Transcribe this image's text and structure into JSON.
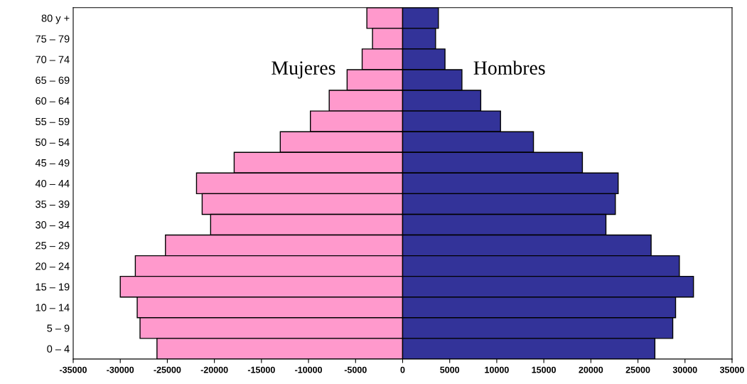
{
  "chart_data": {
    "type": "bar",
    "orientation": "horizontal",
    "stacked": true,
    "categories": [
      "80 y +",
      "75 – 79",
      "70 – 74",
      "65 – 69",
      "60 – 64",
      "55 – 59",
      "50 – 54",
      "45 – 49",
      "40 – 44",
      "35 – 39",
      "30 – 34",
      "25 – 29",
      "20 – 24",
      "15 – 19",
      "10 – 14",
      "5 – 9",
      "0 – 4"
    ],
    "series": [
      {
        "name": "Mujeres",
        "color": "#ff99cc",
        "values": [
          -3800,
          -3200,
          -4300,
          -5900,
          -7800,
          -9800,
          -13000,
          -17900,
          -21900,
          -21300,
          -20400,
          -25200,
          -28400,
          -30000,
          -28200,
          -27900,
          -26100
        ]
      },
      {
        "name": "Hombres",
        "color": "#333399",
        "values": [
          3800,
          3500,
          4500,
          6300,
          8300,
          10400,
          13900,
          19100,
          22900,
          22600,
          21600,
          26400,
          29400,
          30900,
          29000,
          28700,
          26800
        ]
      }
    ],
    "xlim": [
      -35000,
      35000
    ],
    "xticks": [
      -35000,
      -30000,
      -25000,
      -20000,
      -15000,
      -10000,
      -5000,
      0,
      5000,
      10000,
      15000,
      20000,
      25000,
      30000,
      35000
    ],
    "grid": false,
    "legend": false
  }
}
